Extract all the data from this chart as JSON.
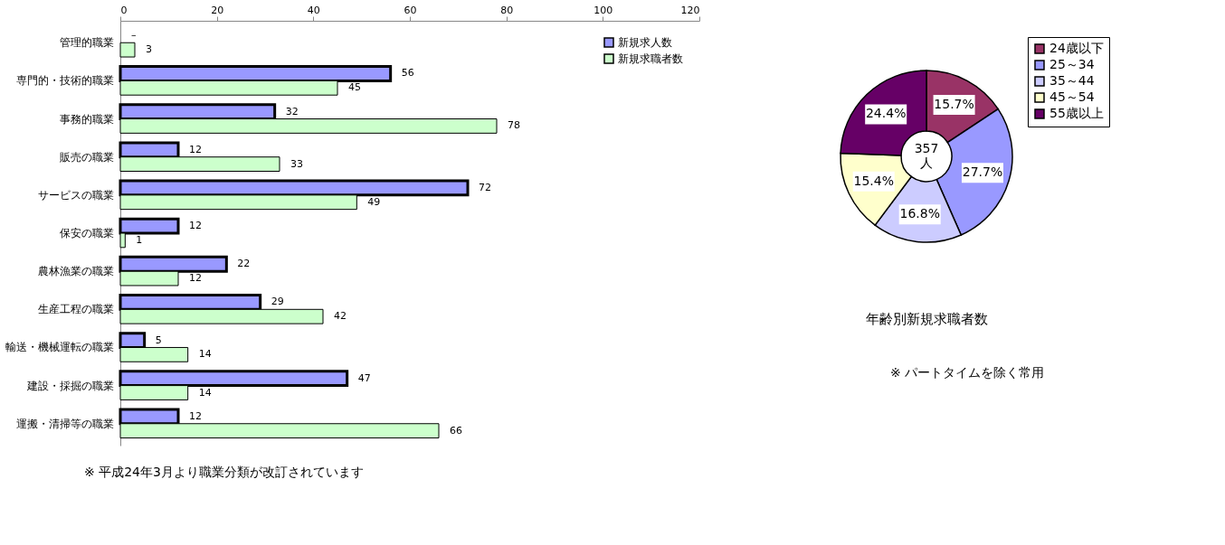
{
  "chart_data": [
    {
      "type": "bar",
      "orientation": "horizontal",
      "categories": [
        "管理的職業",
        "専門的・技術的職業",
        "事務的職業",
        "販売の職業",
        "サービスの職業",
        "保安の職業",
        "農林漁業の職業",
        "生産工程の職業",
        "輸送・機械運転の職業",
        "建設・採掘の職業",
        "運搬・清掃等の職業"
      ],
      "series": [
        {
          "name": "新規求人数",
          "color": "#9999ff",
          "values": [
            null,
            56,
            32,
            12,
            72,
            12,
            22,
            29,
            5,
            47,
            12
          ],
          "value_labels": [
            "–",
            "56",
            "32",
            "12",
            "72",
            "12",
            "22",
            "29",
            "5",
            "47",
            "12"
          ]
        },
        {
          "name": "新規求職者数",
          "color": "#ccffcc",
          "values": [
            3,
            45,
            78,
            33,
            49,
            1,
            12,
            42,
            14,
            14,
            66
          ],
          "value_labels": [
            "3",
            "45",
            "78",
            "33",
            "49",
            "1",
            "12",
            "42",
            "14",
            "14",
            "66"
          ]
        }
      ],
      "xlim": [
        0,
        120
      ],
      "xticks": [
        0,
        20,
        40,
        60,
        80,
        100,
        120
      ],
      "grid": false,
      "legend": "top right",
      "annotations": [
        "※ 平成24年3月より職業分類が改訂されています"
      ]
    },
    {
      "type": "donut",
      "title": "年齢別新規求職者数",
      "categories": [
        "24歳以下",
        "25～34",
        "35～44",
        "45～54",
        "55歳以上"
      ],
      "values": [
        15.7,
        27.7,
        16.8,
        15.4,
        24.4
      ],
      "value_labels": [
        "15.7%",
        "27.7%",
        "16.8%",
        "15.4%",
        "24.4%"
      ],
      "colors": [
        "#993366",
        "#9999ff",
        "#ccccff",
        "#ffffcc",
        "#660066"
      ],
      "legend": "top right",
      "annotations": [
        "357\n人",
        "※ パートタイムを除く常用"
      ]
    }
  ]
}
